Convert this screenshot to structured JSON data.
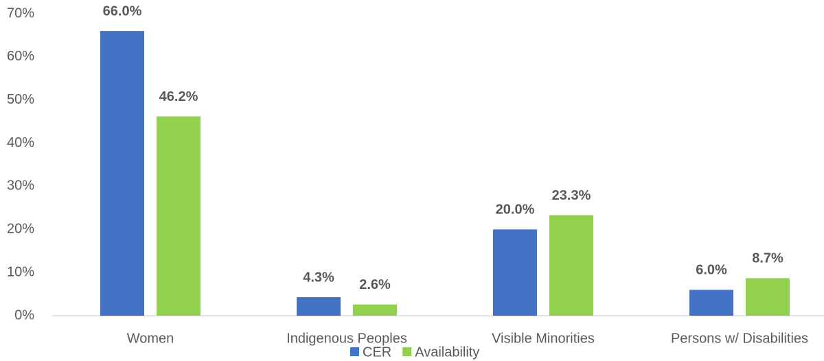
{
  "chart_data": {
    "type": "bar",
    "categories": [
      "Women",
      "Indigenous Peoples",
      "Visible Minorities",
      "Persons w/ Disabilities"
    ],
    "series": [
      {
        "name": "CER",
        "color": "#4472c4",
        "values": [
          66.0,
          4.3,
          20.0,
          6.0
        ],
        "value_labels": [
          "66.0%",
          "4.3%",
          "20.0%",
          "6.0%"
        ]
      },
      {
        "name": "Availability",
        "color": "#92d050",
        "values": [
          46.2,
          2.6,
          23.3,
          8.7
        ],
        "value_labels": [
          "46.2%",
          "2.6%",
          "23.3%",
          "8.7%"
        ]
      }
    ],
    "ylim": [
      0,
      70
    ],
    "yticks": [
      {
        "value": 0,
        "label": "0%"
      },
      {
        "value": 10,
        "label": "10%"
      },
      {
        "value": 20,
        "label": "20%"
      },
      {
        "value": 30,
        "label": "30%"
      },
      {
        "value": 40,
        "label": "40%"
      },
      {
        "value": 50,
        "label": "50%"
      },
      {
        "value": 60,
        "label": "60%"
      },
      {
        "value": 70,
        "label": "70%"
      }
    ],
    "grid": false,
    "legend": "bottom"
  }
}
